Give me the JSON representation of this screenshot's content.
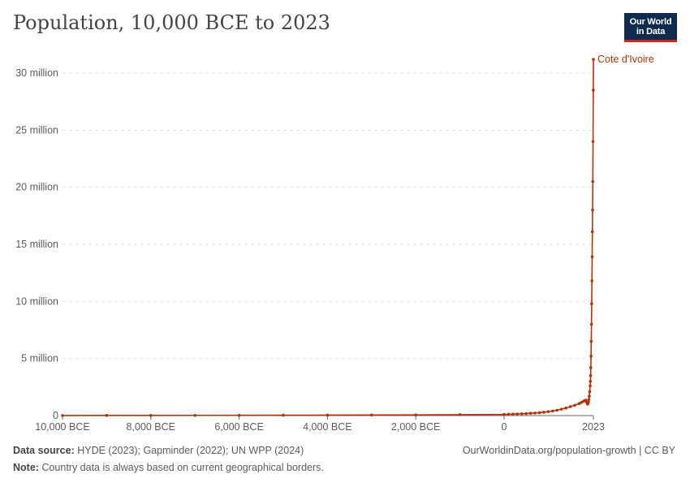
{
  "title": "Population, 10,000 BCE to 2023",
  "logo": {
    "line1": "Our World",
    "line2": "in Data"
  },
  "colors": {
    "series": "#b13507",
    "grid": "#dddddd",
    "axis": "#666666",
    "text": "#5b5b5b"
  },
  "footer": {
    "source_label": "Data source:",
    "source_text": "HYDE (2023); Gapminder (2022); UN WPP (2024)",
    "note_label": "Note:",
    "note_text": "Country data is always based on current geographical borders.",
    "url_text": "OurWorldinData.org/population-growth | CC BY"
  },
  "chart_data": {
    "type": "line",
    "title": "Population, 10,000 BCE to 2023",
    "xlabel": "",
    "ylabel": "",
    "xlim": [
      -10000,
      2023
    ],
    "ylim": [
      0,
      30000000
    ],
    "x_ticks": [
      {
        "value": -10000,
        "label": "10,000 BCE"
      },
      {
        "value": -8000,
        "label": "8,000 BCE"
      },
      {
        "value": -6000,
        "label": "6,000 BCE"
      },
      {
        "value": -4000,
        "label": "4,000 BCE"
      },
      {
        "value": -2000,
        "label": "2,000 BCE"
      },
      {
        "value": 0,
        "label": "0"
      },
      {
        "value": 2023,
        "label": "2023"
      }
    ],
    "y_ticks": [
      {
        "value": 0,
        "label": "0"
      },
      {
        "value": 5000000,
        "label": "5 million"
      },
      {
        "value": 10000000,
        "label": "10 million"
      },
      {
        "value": 15000000,
        "label": "15 million"
      },
      {
        "value": 20000000,
        "label": "20 million"
      },
      {
        "value": 25000000,
        "label": "25 million"
      },
      {
        "value": 30000000,
        "label": "30 million"
      }
    ],
    "grid": true,
    "series": [
      {
        "name": "Cote d'Ivoire",
        "x": [
          -10000,
          -9000,
          -8000,
          -7000,
          -6000,
          -5000,
          -4000,
          -3000,
          -2000,
          -1000,
          0,
          100,
          200,
          300,
          400,
          500,
          600,
          700,
          800,
          900,
          1000,
          1100,
          1200,
          1300,
          1400,
          1500,
          1600,
          1700,
          1750,
          1800,
          1820,
          1850,
          1870,
          1880,
          1890,
          1900,
          1910,
          1920,
          1930,
          1940,
          1950,
          1955,
          1960,
          1965,
          1970,
          1975,
          1980,
          1985,
          1990,
          1995,
          2000,
          2005,
          2010,
          2015,
          2020,
          2023
        ],
        "y": [
          8000,
          10000,
          13000,
          17000,
          22000,
          28000,
          37000,
          48000,
          62000,
          80000,
          103000,
          115000,
          128000,
          142000,
          158000,
          176000,
          197000,
          220000,
          250000,
          290000,
          340000,
          400000,
          470000,
          560000,
          660000,
          780000,
          900000,
          1050000,
          1150000,
          1250000,
          1300000,
          1350000,
          1200000,
          1100000,
          1000000,
          1050000,
          1200000,
          1400000,
          1700000,
          2100000,
          2600000,
          3000000,
          3500000,
          4200000,
          5200000,
          6500000,
          8000000,
          9800000,
          11800000,
          13900000,
          16100000,
          18000000,
          20500000,
          24000000,
          28500000,
          31200000
        ]
      }
    ]
  }
}
